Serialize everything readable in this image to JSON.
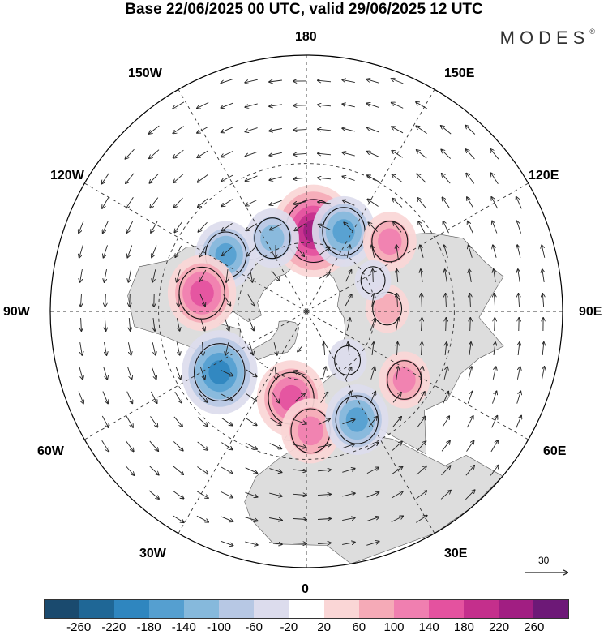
{
  "title": "Base 22/06/2025 00 UTC, valid 29/06/2025 12 UTC",
  "brand": "MODES",
  "brand_mark": "®",
  "longitude_labels": {
    "top": "180",
    "top_left": "150W",
    "top_right": "150E",
    "upper_left": "120W",
    "upper_right": "120E",
    "left": "90W",
    "right": "90E",
    "lower_left": "60W",
    "lower_right": "60E",
    "bottom_left": "30W",
    "bottom_right": "30E",
    "bottom": "0"
  },
  "reference_vector": "30",
  "colorbar": {
    "colors": [
      "#1a4a6e",
      "#1f6796",
      "#2f86bf",
      "#559fd0",
      "#86b9dc",
      "#b7c8e4",
      "#dcdced",
      "#ffffff",
      "#fad6d6",
      "#f5aab7",
      "#f07fb0",
      "#e4529f",
      "#c42f8c",
      "#a11e82",
      "#6d1977"
    ],
    "ticks": [
      "-260",
      "-220",
      "-180",
      "-140",
      "-100",
      "-60",
      "-20",
      "20",
      "60",
      "100",
      "140",
      "180",
      "220",
      "260"
    ]
  },
  "colors": {
    "land_fill": "#dddddd",
    "coast": "#555555",
    "grid": "#333333",
    "vector": "#222222"
  },
  "anomalies": [
    {
      "lon": 175,
      "lat": 55,
      "value": 230
    },
    {
      "lon": 155,
      "lat": 52,
      "value": -150
    },
    {
      "lon": -155,
      "lat": 55,
      "value": -110
    },
    {
      "lon": 130,
      "lat": 44,
      "value": 110
    },
    {
      "lon": -125,
      "lat": 48,
      "value": -140
    },
    {
      "lon": -100,
      "lat": 45,
      "value": 170
    },
    {
      "lon": -55,
      "lat": 45,
      "value": -200
    },
    {
      "lon": -10,
      "lat": 52,
      "value": 170
    },
    {
      "lon": 2,
      "lat": 40,
      "value": 130
    },
    {
      "lon": 25,
      "lat": 40,
      "value": -150
    },
    {
      "lon": 55,
      "lat": 40,
      "value": 100
    },
    {
      "lon": 92,
      "lat": 55,
      "value": 70
    },
    {
      "lon": 40,
      "lat": 62,
      "value": -50
    },
    {
      "lon": 115,
      "lat": 58,
      "value": -40
    }
  ]
}
